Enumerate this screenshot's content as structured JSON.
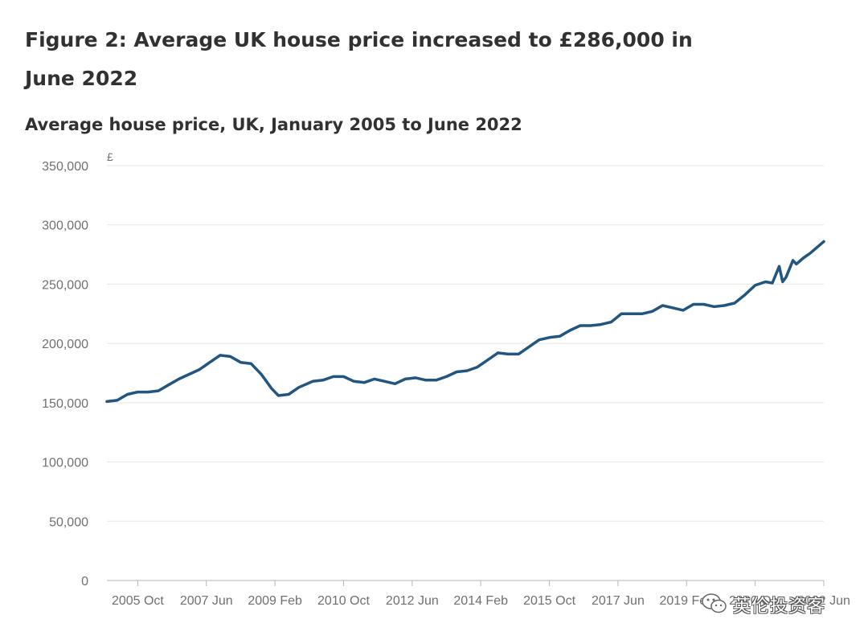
{
  "figure_title": "Figure 2: Average UK house price increased to £286,000 in June 2022",
  "watermark": {
    "text": "英伦投资客",
    "icon": "wechat-logo-icon"
  },
  "colors": {
    "line": "#22557f",
    "grid": "#e5e5e5",
    "axis": "#b6b6b6",
    "text": "#707070"
  },
  "chart_data": {
    "type": "line",
    "title": "Average house price, UK, January 2005 to June 2022",
    "xlabel": "",
    "ylabel": "",
    "y_unit": "£",
    "ylim": [
      0,
      350000
    ],
    "yticks": [
      0,
      50000,
      100000,
      150000,
      200000,
      250000,
      300000,
      350000
    ],
    "ytick_labels": [
      "0",
      "50,000",
      "100,000",
      "150,000",
      "200,000",
      "250,000",
      "300,000",
      "350,000"
    ],
    "xlim": [
      "2005-01",
      "2022-06"
    ],
    "xtick_labels": [
      "2005 Oct",
      "2007 Jun",
      "2009 Feb",
      "2010 Oct",
      "2012 Jun",
      "2014 Feb",
      "2015 Oct",
      "2017 Jun",
      "2019 Feb",
      "2020 Oct",
      "2022 Jun"
    ],
    "xtick_dates": [
      "2005-10",
      "2007-06",
      "2009-02",
      "2010-10",
      "2012-06",
      "2014-02",
      "2015-10",
      "2017-06",
      "2019-02",
      "2020-10",
      "2022-06"
    ],
    "grid": true,
    "legend": "none",
    "series": [
      {
        "x": [
          "2005-01",
          "2005-04",
          "2005-07",
          "2005-10",
          "2006-01",
          "2006-04",
          "2006-07",
          "2006-10",
          "2007-01",
          "2007-04",
          "2007-07",
          "2007-10",
          "2008-01",
          "2008-04",
          "2008-07",
          "2008-10",
          "2009-01",
          "2009-03",
          "2009-06",
          "2009-09",
          "2010-01",
          "2010-04",
          "2010-07",
          "2010-10",
          "2011-01",
          "2011-04",
          "2011-07",
          "2011-10",
          "2012-01",
          "2012-04",
          "2012-07",
          "2012-10",
          "2013-01",
          "2013-04",
          "2013-07",
          "2013-10",
          "2014-01",
          "2014-04",
          "2014-07",
          "2014-10",
          "2015-01",
          "2015-04",
          "2015-07",
          "2015-10",
          "2016-01",
          "2016-04",
          "2016-07",
          "2016-10",
          "2017-01",
          "2017-04",
          "2017-07",
          "2017-10",
          "2018-01",
          "2018-04",
          "2018-07",
          "2018-10",
          "2019-01",
          "2019-04",
          "2019-07",
          "2019-10",
          "2020-01",
          "2020-04",
          "2020-07",
          "2020-10",
          "2021-01",
          "2021-03",
          "2021-05",
          "2021-06",
          "2021-07",
          "2021-09",
          "2021-10",
          "2021-12",
          "2022-02",
          "2022-04",
          "2022-06"
        ],
        "y": [
          151000,
          152000,
          157000,
          159000,
          159000,
          160000,
          165000,
          170000,
          174000,
          178000,
          184000,
          190000,
          189000,
          184000,
          183000,
          174000,
          162000,
          156000,
          157000,
          163000,
          168000,
          169000,
          172000,
          172000,
          168000,
          167000,
          170000,
          168000,
          166000,
          170000,
          171000,
          169000,
          169000,
          172000,
          176000,
          177000,
          180000,
          186000,
          192000,
          191000,
          191000,
          197000,
          203000,
          205000,
          206000,
          211000,
          215000,
          215000,
          216000,
          218000,
          225000,
          225000,
          225000,
          227000,
          232000,
          230000,
          228000,
          233000,
          233000,
          231000,
          232000,
          234000,
          241000,
          249000,
          252000,
          251000,
          265000,
          252000,
          256000,
          270000,
          267000,
          272000,
          276000,
          281000,
          286000
        ]
      }
    ]
  }
}
